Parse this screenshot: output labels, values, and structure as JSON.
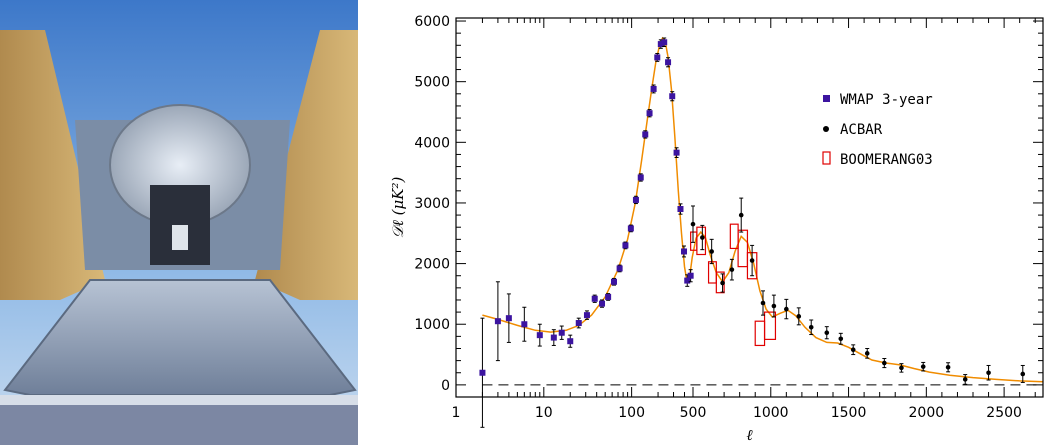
{
  "photo": {
    "subject": "radio-telescope-photo"
  },
  "chart_data": {
    "type": "scatter",
    "xlabel": "ℓ",
    "ylabel": "𝒟ℓ  (μK²)",
    "xscale": "log-then-linear",
    "ylim": [
      -200,
      6050
    ],
    "grid": false,
    "legend_position": "top-right",
    "x_ticks": [
      "1",
      "10",
      "100",
      "500",
      "1000",
      "1500",
      "2000",
      "2500"
    ],
    "y_ticks": [
      0,
      1000,
      2000,
      3000,
      4000,
      5000,
      6000
    ],
    "series": [
      {
        "name": "WMAP 3-year",
        "color": "#3c14a0",
        "points": [
          {
            "x": 2,
            "y": 200,
            "err": 900
          },
          {
            "x": 3,
            "y": 1050,
            "err": 650
          },
          {
            "x": 4,
            "y": 1100,
            "err": 400
          },
          {
            "x": 6,
            "y": 1000,
            "err": 280
          },
          {
            "x": 9,
            "y": 820,
            "err": 180
          },
          {
            "x": 13,
            "y": 780,
            "err": 130
          },
          {
            "x": 16,
            "y": 860,
            "err": 110
          },
          {
            "x": 20,
            "y": 720,
            "err": 100
          },
          {
            "x": 25,
            "y": 1020,
            "err": 80
          },
          {
            "x": 31,
            "y": 1150,
            "err": 70
          },
          {
            "x": 38,
            "y": 1420,
            "err": 60
          },
          {
            "x": 46,
            "y": 1340,
            "err": 60
          },
          {
            "x": 54,
            "y": 1450,
            "err": 55
          },
          {
            "x": 63,
            "y": 1700,
            "err": 55
          },
          {
            "x": 73,
            "y": 1920,
            "err": 55
          },
          {
            "x": 85,
            "y": 2300,
            "err": 55
          },
          {
            "x": 98,
            "y": 2580,
            "err": 55
          },
          {
            "x": 112,
            "y": 3050,
            "err": 60
          },
          {
            "x": 127,
            "y": 3420,
            "err": 60
          },
          {
            "x": 143,
            "y": 4130,
            "err": 60
          },
          {
            "x": 160,
            "y": 4480,
            "err": 60
          },
          {
            "x": 178,
            "y": 4880,
            "err": 65
          },
          {
            "x": 196,
            "y": 5400,
            "err": 65
          },
          {
            "x": 215,
            "y": 5620,
            "err": 70
          },
          {
            "x": 235,
            "y": 5650,
            "err": 70
          },
          {
            "x": 260,
            "y": 5320,
            "err": 75
          },
          {
            "x": 290,
            "y": 4760,
            "err": 75
          },
          {
            "x": 325,
            "y": 3830,
            "err": 80
          },
          {
            "x": 360,
            "y": 2900,
            "err": 85
          },
          {
            "x": 395,
            "y": 2200,
            "err": 90
          },
          {
            "x": 430,
            "y": 1720,
            "err": 95
          },
          {
            "x": 470,
            "y": 1800,
            "err": 100
          }
        ]
      },
      {
        "name": "ACBAR",
        "color": "#000000",
        "points": [
          {
            "x": 500,
            "y": 2650,
            "err": 300
          },
          {
            "x": 560,
            "y": 2430,
            "err": 200
          },
          {
            "x": 620,
            "y": 2200,
            "err": 200
          },
          {
            "x": 690,
            "y": 1680,
            "err": 150
          },
          {
            "x": 750,
            "y": 1900,
            "err": 170
          },
          {
            "x": 810,
            "y": 2800,
            "err": 280
          },
          {
            "x": 880,
            "y": 2050,
            "err": 250
          },
          {
            "x": 950,
            "y": 1350,
            "err": 200
          },
          {
            "x": 1020,
            "y": 1300,
            "err": 180
          },
          {
            "x": 1100,
            "y": 1250,
            "err": 160
          },
          {
            "x": 1180,
            "y": 1130,
            "err": 140
          },
          {
            "x": 1260,
            "y": 950,
            "err": 120
          },
          {
            "x": 1360,
            "y": 860,
            "err": 100
          },
          {
            "x": 1450,
            "y": 760,
            "err": 90
          },
          {
            "x": 1530,
            "y": 580,
            "err": 80
          },
          {
            "x": 1620,
            "y": 520,
            "err": 80
          },
          {
            "x": 1730,
            "y": 360,
            "err": 75
          },
          {
            "x": 1840,
            "y": 280,
            "err": 70
          },
          {
            "x": 1980,
            "y": 300,
            "err": 70
          },
          {
            "x": 2140,
            "y": 290,
            "err": 75
          },
          {
            "x": 2250,
            "y": 90,
            "err": 80
          },
          {
            "x": 2400,
            "y": 200,
            "err": 120
          },
          {
            "x": 2620,
            "y": 180,
            "err": 140
          }
        ]
      },
      {
        "name": "BOOMERANG03",
        "color": "#e00000",
        "boxes": [
          {
            "x0": 470,
            "x1": 525,
            "y0": 2220,
            "y1": 2520
          },
          {
            "x0": 525,
            "x1": 580,
            "y0": 2150,
            "y1": 2600
          },
          {
            "x0": 600,
            "x1": 650,
            "y0": 1680,
            "y1": 2030
          },
          {
            "x0": 650,
            "x1": 700,
            "y0": 1520,
            "y1": 1860
          },
          {
            "x0": 740,
            "x1": 790,
            "y0": 2250,
            "y1": 2650
          },
          {
            "x0": 790,
            "x1": 850,
            "y0": 1950,
            "y1": 2550
          },
          {
            "x0": 850,
            "x1": 910,
            "y0": 1750,
            "y1": 2180
          },
          {
            "x0": 900,
            "x1": 960,
            "y0": 650,
            "y1": 1050
          },
          {
            "x0": 960,
            "x1": 1030,
            "y0": 750,
            "y1": 1200
          }
        ]
      }
    ],
    "theory_curve": {
      "name": "",
      "color": "#f08c00",
      "points": [
        [
          2,
          1150
        ],
        [
          3,
          1080
        ],
        [
          5,
          980
        ],
        [
          8,
          900
        ],
        [
          12,
          870
        ],
        [
          18,
          900
        ],
        [
          25,
          980
        ],
        [
          35,
          1150
        ],
        [
          50,
          1450
        ],
        [
          70,
          1900
        ],
        [
          90,
          2400
        ],
        [
          110,
          3000
        ],
        [
          130,
          3700
        ],
        [
          150,
          4350
        ],
        [
          170,
          4900
        ],
        [
          190,
          5350
        ],
        [
          210,
          5620
        ],
        [
          225,
          5720
        ],
        [
          240,
          5680
        ],
        [
          260,
          5400
        ],
        [
          285,
          4850
        ],
        [
          310,
          4100
        ],
        [
          340,
          3200
        ],
        [
          370,
          2500
        ],
        [
          400,
          1950
        ],
        [
          420,
          1760
        ],
        [
          440,
          1720
        ],
        [
          460,
          1800
        ],
        [
          490,
          2100
        ],
        [
          520,
          2420
        ],
        [
          550,
          2520
        ],
        [
          580,
          2430
        ],
        [
          610,
          2150
        ],
        [
          650,
          1850
        ],
        [
          690,
          1700
        ],
        [
          730,
          1850
        ],
        [
          770,
          2200
        ],
        [
          810,
          2450
        ],
        [
          850,
          2350
        ],
        [
          890,
          2000
        ],
        [
          930,
          1550
        ],
        [
          970,
          1250
        ],
        [
          1010,
          1120
        ],
        [
          1060,
          1180
        ],
        [
          1110,
          1230
        ],
        [
          1160,
          1140
        ],
        [
          1220,
          950
        ],
        [
          1290,
          780
        ],
        [
          1360,
          700
        ],
        [
          1430,
          690
        ],
        [
          1500,
          620
        ],
        [
          1570,
          520
        ],
        [
          1650,
          410
        ],
        [
          1740,
          360
        ],
        [
          1830,
          330
        ],
        [
          1920,
          270
        ],
        [
          2020,
          210
        ],
        [
          2150,
          160
        ],
        [
          2300,
          120
        ],
        [
          2450,
          90
        ],
        [
          2600,
          65
        ],
        [
          2750,
          50
        ]
      ]
    }
  }
}
